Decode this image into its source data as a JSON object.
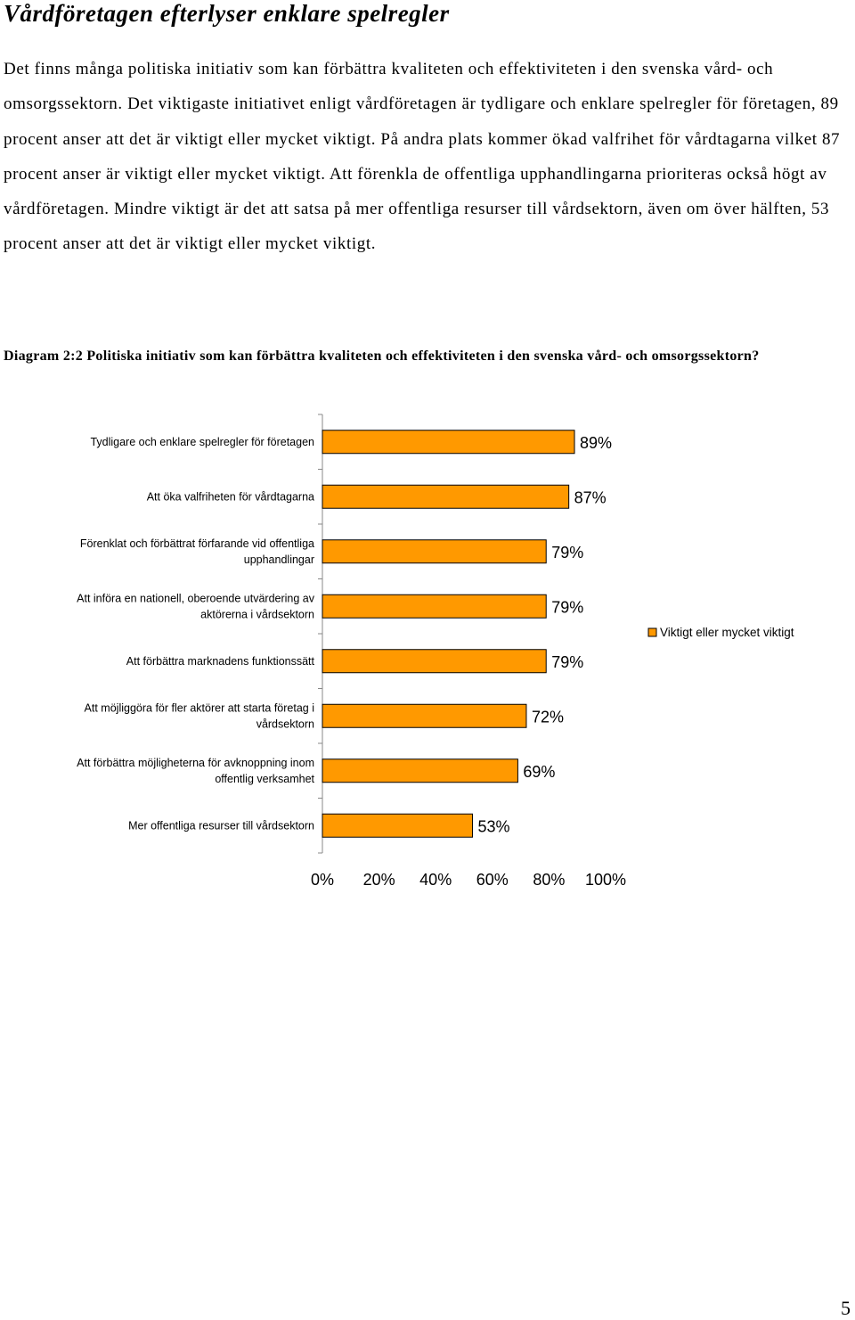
{
  "document": {
    "heading": "Vårdföretagen efterlyser enklare spelregler",
    "paragraph": "Det finns många politiska initiativ som kan förbättra kvaliteten och effektiviteten i den svenska vård- och omsorgssektorn. Det viktigaste initiativet enligt vårdföretagen är tydligare och enklare spelregler för företagen, 89 procent anser att det är viktigt eller mycket viktigt. På andra plats kommer ökad valfrihet för vårdtagarna vilket 87 procent anser är viktigt eller mycket viktigt. Att förenkla de offentliga upphandlingarna prioriteras också högt av vårdföretagen. Mindre viktigt är det att satsa på mer offentliga resurser till vårdsektorn, även om över hälften, 53 procent anser att det är viktigt eller mycket viktigt.",
    "caption": "Diagram 2:2 Politiska initiativ som kan förbättra kvaliteten och effektiviteten i den svenska vård- och omsorgssektorn?",
    "page_number": "5"
  },
  "chart_data": {
    "type": "bar",
    "orientation": "horizontal",
    "categories": [
      [
        "Tydligare och enklare spelregler för företagen"
      ],
      [
        "Att öka valfriheten för vårdtagarna"
      ],
      [
        "Förenklat och förbättrat förfarande vid offentliga",
        "upphandlingar"
      ],
      [
        "Att införa en nationell, oberoende utvärdering av",
        "aktörerna i vårdsektorn"
      ],
      [
        "Att förbättra marknadens funktionssätt"
      ],
      [
        "Att möjliggöra för fler aktörer att starta företag i",
        "vårdsektorn"
      ],
      [
        "Att förbättra möjligheterna för avknoppning inom",
        "offentlig verksamhet"
      ],
      [
        "Mer offentliga resurser till vårdsektorn"
      ]
    ],
    "series": [
      {
        "name": "Viktigt eller mycket viktigt",
        "values": [
          89,
          87,
          79,
          79,
          79,
          72,
          69,
          53
        ],
        "color": "#ff9900"
      }
    ],
    "data_labels": [
      "89%",
      "87%",
      "79%",
      "79%",
      "79%",
      "72%",
      "69%",
      "53%"
    ],
    "xlim": [
      0,
      100
    ],
    "x_ticks": [
      "0%",
      "20%",
      "40%",
      "60%",
      "80%",
      "100%"
    ],
    "legend_position": "right",
    "grid": false
  }
}
